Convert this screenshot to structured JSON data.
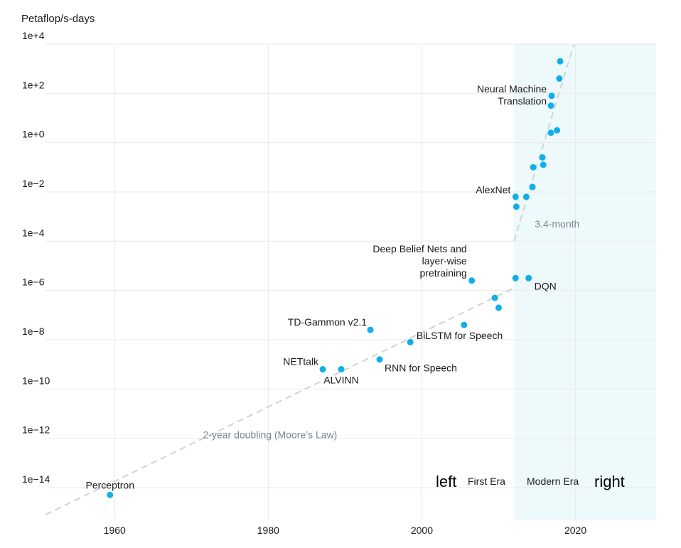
{
  "chart_data": {
    "type": "scatter",
    "ylabel": "Petaflop/s-days",
    "y_scale": "log",
    "x_ticks": [
      1960,
      1980,
      2000,
      2020
    ],
    "x_range": [
      1951,
      2030.5
    ],
    "y_ticks": [
      "1e+4",
      "1e+2",
      "1e+0",
      "1e−2",
      "1e−4",
      "1e−6",
      "1e−8",
      "1e−10",
      "1e−12",
      "1e−14"
    ],
    "y_tick_exponents": [
      4,
      2,
      0,
      -2,
      -4,
      -6,
      -8,
      -10,
      -12,
      -14
    ],
    "y_range_exp": [
      -15.3,
      4
    ],
    "grid": true,
    "points": [
      {
        "x": 1959.4,
        "exp": -14.3,
        "label": "Perceptron"
      },
      {
        "x": 1987.1,
        "exp": -9.2,
        "label": "NETtalk"
      },
      {
        "x": 1989.5,
        "exp": -9.2,
        "label": "ALVINN"
      },
      {
        "x": 1993.3,
        "exp": -7.6,
        "label": "TD-Gammon v2.1"
      },
      {
        "x": 1994.5,
        "exp": -8.8,
        "label": "RNN for Speech"
      },
      {
        "x": 1998.5,
        "exp": -8.1,
        "label": ""
      },
      {
        "x": 2005.5,
        "exp": -7.4,
        "label": "BiLSTM for Speech"
      },
      {
        "x": 2006.5,
        "exp": -5.6,
        "label": "Deep Belief Nets and layer-wise pretraining"
      },
      {
        "x": 2009.5,
        "exp": -6.3,
        "label": ""
      },
      {
        "x": 2010.0,
        "exp": -6.7,
        "label": ""
      },
      {
        "x": 2012.2,
        "exp": -5.5,
        "label": ""
      },
      {
        "x": 2012.2,
        "exp": -2.2,
        "label": "AlexNet"
      },
      {
        "x": 2012.3,
        "exp": -2.6,
        "label": ""
      },
      {
        "x": 2013.6,
        "exp": -2.2,
        "label": ""
      },
      {
        "x": 2013.9,
        "exp": -5.5,
        "label": "DQN"
      },
      {
        "x": 2014.4,
        "exp": -1.8,
        "label": ""
      },
      {
        "x": 2014.5,
        "exp": -1.0,
        "label": ""
      },
      {
        "x": 2015.7,
        "exp": -0.6,
        "label": ""
      },
      {
        "x": 2015.8,
        "exp": -0.9,
        "label": ""
      },
      {
        "x": 2016.8,
        "exp": 0.4,
        "label": ""
      },
      {
        "x": 2016.8,
        "exp": 1.5,
        "label": ""
      },
      {
        "x": 2016.9,
        "exp": 1.9,
        "label": "Neural Machine Translation"
      },
      {
        "x": 2017.6,
        "exp": 0.5,
        "label": ""
      },
      {
        "x": 2017.9,
        "exp": 2.6,
        "label": ""
      },
      {
        "x": 2018.0,
        "exp": 3.3,
        "label": ""
      }
    ],
    "trend_lines": [
      {
        "label": "2-year doubling (Moore’s Law)",
        "from": [
          1951,
          -15.1
        ],
        "to": [
          2012,
          -5.9
        ]
      },
      {
        "label": "3.4-month",
        "from": [
          2012,
          -4.0
        ],
        "to": [
          2019.8,
          4.0
        ]
      }
    ],
    "eras": [
      {
        "label": "First Era",
        "x_range": [
          1951,
          2012
        ]
      },
      {
        "label": "Modern Era",
        "x_range": [
          2012,
          2030.5
        ]
      }
    ],
    "era_words": {
      "left": "left",
      "right": "right"
    },
    "colors": {
      "point": "#0fb0ea",
      "modern_era_fill": "#eef9fc",
      "grid": "#e9e9e9",
      "trend": "#cfd3d8"
    }
  }
}
